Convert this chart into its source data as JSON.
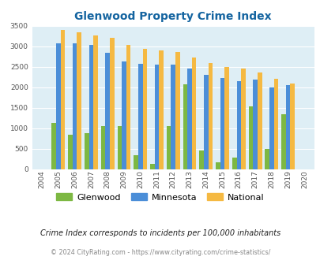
{
  "title": "Glenwood Property Crime Index",
  "years": [
    2004,
    2005,
    2006,
    2007,
    2008,
    2009,
    2010,
    2011,
    2012,
    2013,
    2014,
    2015,
    2016,
    2017,
    2018,
    2019,
    2020
  ],
  "glenwood": [
    0,
    1130,
    830,
    870,
    1060,
    1050,
    330,
    120,
    1060,
    2080,
    450,
    160,
    280,
    1530,
    490,
    1340,
    0
  ],
  "minnesota": [
    0,
    3070,
    3070,
    3030,
    2850,
    2630,
    2570,
    2560,
    2560,
    2460,
    2310,
    2230,
    2150,
    2190,
    2000,
    2060,
    0
  ],
  "national": [
    0,
    3410,
    3340,
    3260,
    3210,
    3040,
    2950,
    2910,
    2860,
    2720,
    2600,
    2500,
    2460,
    2370,
    2210,
    2100,
    0
  ],
  "glenwood_color": "#7db843",
  "minnesota_color": "#4b8ed8",
  "national_color": "#f5b942",
  "background_color": "#deeef5",
  "ylim": [
    0,
    3500
  ],
  "yticks": [
    0,
    500,
    1000,
    1500,
    2000,
    2500,
    3000,
    3500
  ],
  "footnote1": "Crime Index corresponds to incidents per 100,000 inhabitants",
  "footnote2": "© 2024 CityRating.com - https://www.cityrating.com/crime-statistics/",
  "title_color": "#1464a0",
  "footnote1_color": "#222222",
  "footnote2_color": "#888888",
  "bar_width": 0.27,
  "legend_labels": [
    "Glenwood",
    "Minnesota",
    "National"
  ]
}
